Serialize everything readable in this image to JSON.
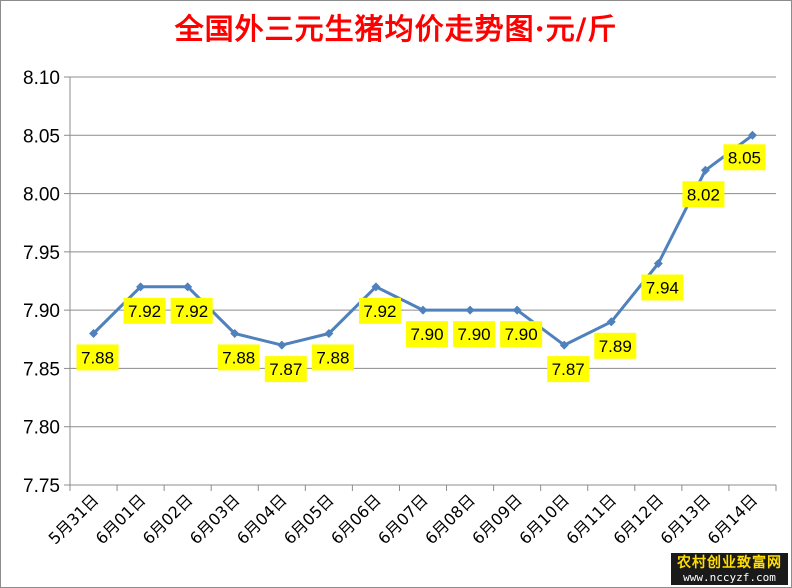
{
  "chart_data": {
    "type": "line",
    "title": "全国外三元生猪均价走势图·元/斤",
    "categories": [
      "5月31日",
      "6月01日",
      "6月02日",
      "6月03日",
      "6月04日",
      "6月05日",
      "6月06日",
      "6月07日",
      "6月08日",
      "6月09日",
      "6月10日",
      "6月11日",
      "6月12日",
      "6月13日",
      "6月14日"
    ],
    "series": [
      {
        "values": [
          7.88,
          7.92,
          7.92,
          7.88,
          7.87,
          7.88,
          7.92,
          7.9,
          7.9,
          7.9,
          7.87,
          7.89,
          7.94,
          8.02,
          8.05
        ]
      }
    ],
    "data_labels": [
      "7.88",
      "7.92",
      "7.92",
      "7.88",
      "7.87",
      "7.88",
      "7.92",
      "7.90",
      "7.90",
      "7.90",
      "7.87",
      "7.89",
      "7.94",
      "8.02",
      "8.05"
    ],
    "yticks": [
      "7.75",
      "7.80",
      "7.85",
      "7.90",
      "7.95",
      "8.00",
      "8.05",
      "8.10"
    ],
    "ylim": [
      7.75,
      8.1
    ],
    "xlabel": "",
    "ylabel": "",
    "grid": true,
    "legend": "none",
    "colors": {
      "title": "#ff0000",
      "line": "#4f81bd",
      "label_background": "#ffff00",
      "grid": "#8c8c8c"
    }
  },
  "watermark": {
    "line1": "农村创业致富网",
    "line2": "www.nccyzf.com"
  }
}
